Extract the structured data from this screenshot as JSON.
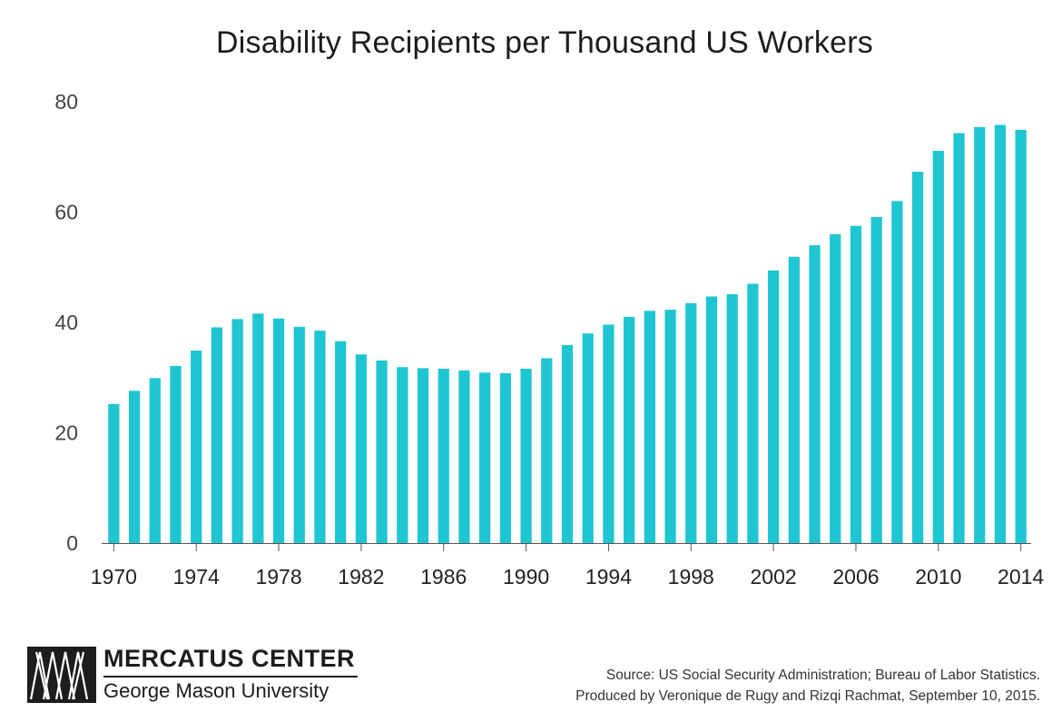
{
  "chart_data": {
    "type": "bar",
    "title": "Disability Recipients per Thousand US Workers",
    "xlabel": "",
    "ylabel": "",
    "ylim": [
      0,
      80
    ],
    "yticks": [
      0,
      20,
      40,
      60,
      80
    ],
    "xtick_labels": [
      "1970",
      "1974",
      "1978",
      "1982",
      "1986",
      "1990",
      "1994",
      "1998",
      "2002",
      "2006",
      "2010",
      "2014"
    ],
    "grid": false,
    "bar_color": "#1fc6d1",
    "categories": [
      "1970",
      "1971",
      "1972",
      "1973",
      "1974",
      "1975",
      "1976",
      "1977",
      "1978",
      "1979",
      "1980",
      "1981",
      "1982",
      "1983",
      "1984",
      "1985",
      "1986",
      "1987",
      "1988",
      "1989",
      "1990",
      "1991",
      "1992",
      "1993",
      "1994",
      "1995",
      "1996",
      "1997",
      "1998",
      "1999",
      "2000",
      "2001",
      "2002",
      "2003",
      "2004",
      "2005",
      "2006",
      "2007",
      "2008",
      "2009",
      "2010",
      "2011",
      "2012",
      "2013",
      "2014"
    ],
    "values": [
      25.2,
      27.6,
      29.9,
      32.1,
      34.9,
      39.1,
      40.6,
      41.6,
      40.7,
      39.2,
      38.5,
      36.6,
      34.2,
      33.1,
      31.9,
      31.7,
      31.6,
      31.3,
      30.9,
      30.8,
      31.6,
      33.5,
      35.9,
      38.0,
      39.6,
      41.0,
      42.1,
      42.3,
      43.5,
      44.7,
      45.1,
      47.0,
      49.4,
      51.9,
      54.0,
      56.0,
      57.5,
      59.1,
      62.0,
      67.3,
      71.1,
      74.3,
      75.4,
      75.8,
      74.9
    ]
  },
  "logo": {
    "name": "MERCATUS CENTER",
    "subtitle": "George Mason University"
  },
  "source": {
    "line1": "Source: US Social Security Administration; Bureau of Labor Statistics.",
    "line2": "Produced by Veronique de Rugy and Rizqi Rachmat, September 10, 2015."
  }
}
